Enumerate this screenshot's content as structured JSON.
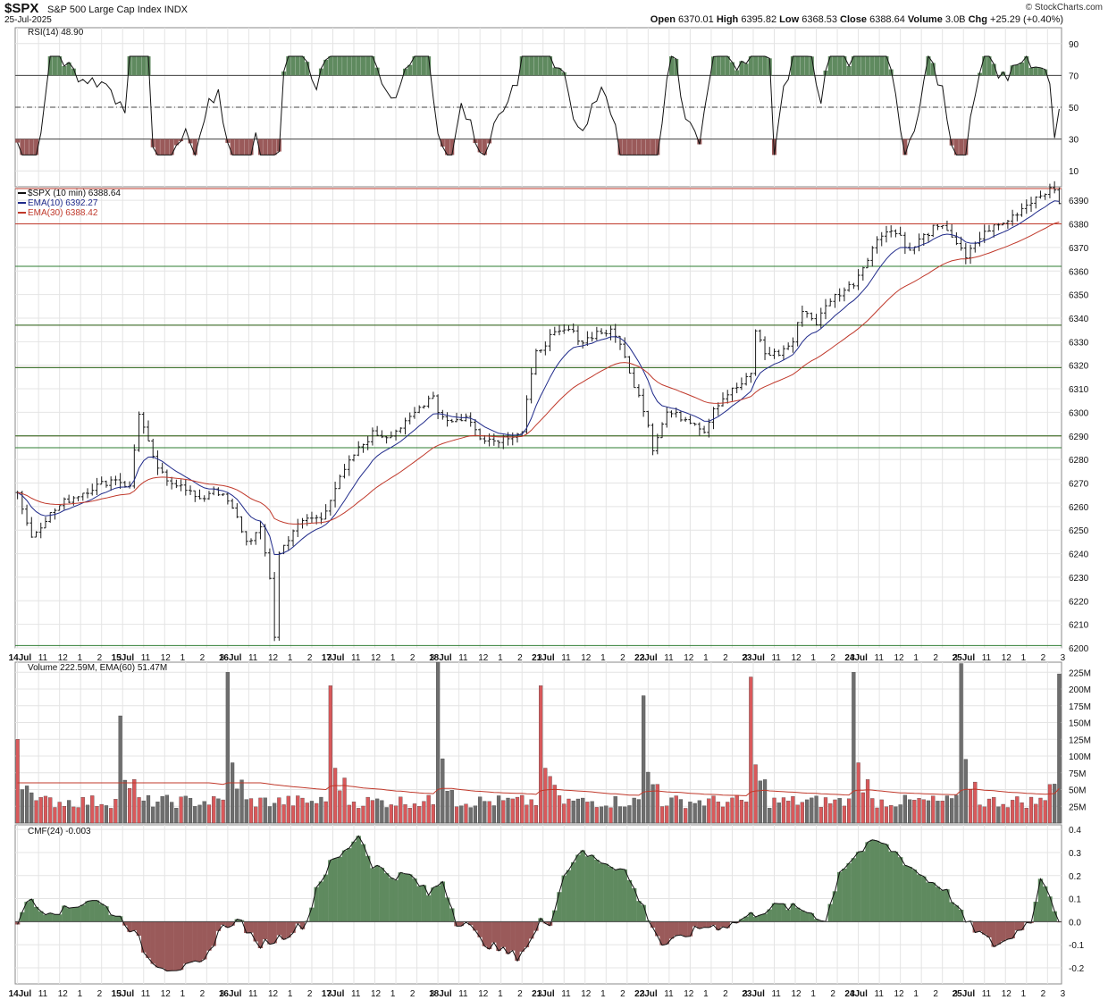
{
  "header": {
    "symbol": "$SPX",
    "name": "S&P 500 Large Cap Index",
    "exchange": "INDX",
    "date": "25-Jul-2025",
    "watermark": "© StockCharts.com",
    "open_label": "Open",
    "open": "6370.01",
    "high_label": "High",
    "high": "6395.82",
    "low_label": "Low",
    "low": "6368.53",
    "close_label": "Close",
    "close": "6388.64",
    "volume_label": "Volume",
    "volume": "3.0B",
    "chg_label": "Chg",
    "chg": "+25.29 (+0.40%)"
  },
  "colors": {
    "up_line": "#1a1a1a",
    "ema10": "#1f2a8a",
    "ema30": "#c0392b",
    "resistance": "#c0392b",
    "support": "#2e7d32",
    "rsi_overbought_fill": "#5f8a5f",
    "rsi_oversold_fill": "#9a5a5a",
    "volume_up": "#d9595b",
    "volume_down": "#6e6e6e",
    "cmf_pos": "#5f8a5f",
    "cmf_neg": "#9a5a5a"
  },
  "chart_data": [
    {
      "type": "line",
      "panel": "RSI",
      "legend": "RSI(14) 48.90",
      "ylim": [
        0,
        100
      ],
      "yticks": [
        10,
        30,
        50,
        70,
        90
      ],
      "levels": [
        30,
        50,
        70
      ],
      "series": [
        {
          "name": "RSI(14)",
          "last": 48.9
        }
      ]
    },
    {
      "type": "line",
      "panel": "price",
      "legend": [
        "$SPX (10 min) 6388.64",
        "EMA(10) 6392.27",
        "EMA(30) 6388.42"
      ],
      "ylim": [
        6200,
        6395
      ],
      "yticks": [
        6200,
        6210,
        6220,
        6230,
        6240,
        6250,
        6260,
        6270,
        6280,
        6290,
        6300,
        6310,
        6320,
        6330,
        6340,
        6350,
        6360,
        6370,
        6380,
        6390
      ],
      "x_days": [
        "14Jul",
        "15Jul",
        "16Jul",
        "17Jul",
        "18Jul",
        "21Jul",
        "22Jul",
        "23Jul",
        "24Jul",
        "25Jul"
      ],
      "x_hours": [
        "11",
        "12",
        "1",
        "2",
        "3"
      ],
      "horizontal_lines": [
        {
          "value": 6395,
          "color": "resistance"
        },
        {
          "value": 6380,
          "color": "resistance"
        },
        {
          "value": 6362,
          "color": "resistance"
        },
        {
          "value": 6362,
          "color": "support"
        },
        {
          "value": 6337,
          "color": "resistance"
        },
        {
          "value": 6337,
          "color": "support"
        },
        {
          "value": 6319,
          "color": "resistance"
        },
        {
          "value": 6319,
          "color": "support"
        },
        {
          "value": 6290,
          "color": "resistance"
        },
        {
          "value": 6290,
          "color": "support"
        },
        {
          "value": 6285,
          "color": "resistance"
        },
        {
          "value": 6285,
          "color": "support"
        },
        {
          "value": 6201,
          "color": "support"
        }
      ],
      "close_anchors": [
        [
          0,
          6266
        ],
        [
          3,
          6247
        ],
        [
          6,
          6255
        ],
        [
          10,
          6262
        ],
        [
          16,
          6268
        ],
        [
          21,
          6272
        ],
        [
          24,
          6268
        ],
        [
          26,
          6300
        ],
        [
          29,
          6280
        ],
        [
          32,
          6270
        ],
        [
          35,
          6270
        ],
        [
          39,
          6262
        ],
        [
          42,
          6268
        ],
        [
          45,
          6262
        ],
        [
          47,
          6255
        ],
        [
          49,
          6245
        ],
        [
          52,
          6250
        ],
        [
          54,
          6230
        ],
        [
          55,
          6205
        ],
        [
          56,
          6240
        ],
        [
          59,
          6250
        ],
        [
          62,
          6255
        ],
        [
          65,
          6255
        ],
        [
          68,
          6268
        ],
        [
          72,
          6282
        ],
        [
          76,
          6291
        ],
        [
          79,
          6290
        ],
        [
          83,
          6295
        ],
        [
          86,
          6302
        ],
        [
          89,
          6308
        ],
        [
          90,
          6300
        ],
        [
          93,
          6296
        ],
        [
          96,
          6298
        ],
        [
          99,
          6290
        ],
        [
          102,
          6288
        ],
        [
          105,
          6290
        ],
        [
          108,
          6292
        ],
        [
          109,
          6305
        ],
        [
          111,
          6325
        ],
        [
          114,
          6332
        ],
        [
          118,
          6335
        ],
        [
          121,
          6330
        ],
        [
          124,
          6334
        ],
        [
          127,
          6334
        ],
        [
          129,
          6330
        ],
        [
          131,
          6316
        ],
        [
          133,
          6308
        ],
        [
          135,
          6295
        ],
        [
          136,
          6285
        ],
        [
          137,
          6290
        ],
        [
          139,
          6300
        ],
        [
          142,
          6298
        ],
        [
          145,
          6296
        ],
        [
          147,
          6292
        ],
        [
          149,
          6302
        ],
        [
          152,
          6308
        ],
        [
          155,
          6312
        ],
        [
          157,
          6316
        ],
        [
          158,
          6335
        ],
        [
          160,
          6325
        ],
        [
          163,
          6325
        ],
        [
          166,
          6330
        ],
        [
          168,
          6344
        ],
        [
          171,
          6338
        ],
        [
          174,
          6348
        ],
        [
          177,
          6352
        ],
        [
          179,
          6355
        ],
        [
          181,
          6362
        ],
        [
          183,
          6370
        ],
        [
          186,
          6378
        ],
        [
          189,
          6375
        ],
        [
          191,
          6368
        ],
        [
          193,
          6373
        ],
        [
          196,
          6378
        ],
        [
          199,
          6378
        ],
        [
          201,
          6372
        ],
        [
          203,
          6365
        ],
        [
          205,
          6372
        ],
        [
          208,
          6378
        ],
        [
          211,
          6380
        ],
        [
          214,
          6385
        ],
        [
          217,
          6390
        ],
        [
          220,
          6394
        ],
        [
          222,
          6394
        ],
        [
          223,
          6387
        ]
      ],
      "ema10_last": 6392.27,
      "ema30_last": 6388.42,
      "last": 6388.64
    },
    {
      "type": "bar",
      "panel": "volume",
      "legend": "Volume 222.59M, EMA(60) 51.47M",
      "ylim": [
        0,
        240
      ],
      "yticks_labels": [
        "25M",
        "50M",
        "75M",
        "100M",
        "125M",
        "150M",
        "175M",
        "200M",
        "225M"
      ],
      "yticks": [
        25,
        50,
        75,
        100,
        125,
        150,
        175,
        200,
        225
      ],
      "unit": "M",
      "open_spikes": [
        {
          "day": "14Jul",
          "value": 125
        },
        {
          "day": "15Jul",
          "value": 160
        },
        {
          "day": "16Jul",
          "value": 225
        },
        {
          "day": "17Jul",
          "value": 205
        },
        {
          "day": "18Jul",
          "value": 240
        },
        {
          "day": "21Jul",
          "value": 205
        },
        {
          "day": "22Jul",
          "value": 190
        },
        {
          "day": "23Jul",
          "value": 218
        },
        {
          "day": "24Jul",
          "value": 225
        },
        {
          "day": "25Jul",
          "value": 238
        }
      ],
      "last": 222.59,
      "ema60_last": 51.47
    },
    {
      "type": "area",
      "panel": "CMF",
      "legend": "CMF(24) -0.003",
      "ylim": [
        -0.27,
        0.42
      ],
      "yticks": [
        -0.2,
        -0.1,
        0.0,
        0.1,
        0.2,
        0.3,
        0.4
      ],
      "yticks_labels": [
        "-0.2",
        "-0.1",
        "0.0",
        "0.1",
        "0.2",
        "0.3",
        "0.4"
      ],
      "anchors": [
        [
          0,
          0.0
        ],
        [
          2,
          0.1
        ],
        [
          5,
          0.05
        ],
        [
          10,
          0.05
        ],
        [
          16,
          0.1
        ],
        [
          19,
          0.06
        ],
        [
          23,
          0.0
        ],
        [
          26,
          -0.08
        ],
        [
          28,
          -0.16
        ],
        [
          32,
          -0.2
        ],
        [
          36,
          -0.2
        ],
        [
          40,
          -0.18
        ],
        [
          43,
          -0.04
        ],
        [
          46,
          0.0
        ],
        [
          48,
          0.0
        ],
        [
          51,
          -0.1
        ],
        [
          55,
          -0.08
        ],
        [
          58,
          -0.05
        ],
        [
          62,
          0.0
        ],
        [
          64,
          0.15
        ],
        [
          67,
          0.25
        ],
        [
          70,
          0.3
        ],
        [
          73,
          0.38
        ],
        [
          76,
          0.25
        ],
        [
          80,
          0.2
        ],
        [
          84,
          0.2
        ],
        [
          88,
          0.12
        ],
        [
          91,
          0.18
        ],
        [
          94,
          0.0
        ],
        [
          96,
          0.0
        ],
        [
          99,
          -0.08
        ],
        [
          103,
          -0.12
        ],
        [
          107,
          -0.15
        ],
        [
          110,
          -0.08
        ],
        [
          112,
          0.0
        ],
        [
          114,
          0.0
        ],
        [
          117,
          0.2
        ],
        [
          120,
          0.3
        ],
        [
          123,
          0.28
        ],
        [
          127,
          0.25
        ],
        [
          130,
          0.22
        ],
        [
          133,
          0.1
        ],
        [
          135,
          0.02
        ],
        [
          138,
          -0.1
        ],
        [
          141,
          -0.08
        ],
        [
          144,
          -0.05
        ],
        [
          147,
          -0.02
        ],
        [
          150,
          -0.02
        ],
        [
          153,
          -0.01
        ],
        [
          156,
          0.02
        ],
        [
          160,
          0.05
        ],
        [
          163,
          0.07
        ],
        [
          166,
          0.06
        ],
        [
          170,
          0.04
        ],
        [
          173,
          0.0
        ],
        [
          176,
          0.22
        ],
        [
          180,
          0.3
        ],
        [
          184,
          0.35
        ],
        [
          188,
          0.3
        ],
        [
          191,
          0.24
        ],
        [
          195,
          0.18
        ],
        [
          198,
          0.15
        ],
        [
          200,
          0.1
        ],
        [
          203,
          0.0
        ],
        [
          206,
          -0.05
        ],
        [
          209,
          -0.1
        ],
        [
          212,
          -0.08
        ],
        [
          215,
          -0.02
        ],
        [
          217,
          0.0
        ],
        [
          219,
          0.2
        ],
        [
          221,
          0.12
        ],
        [
          223,
          0.0
        ]
      ],
      "last": -0.003
    }
  ]
}
